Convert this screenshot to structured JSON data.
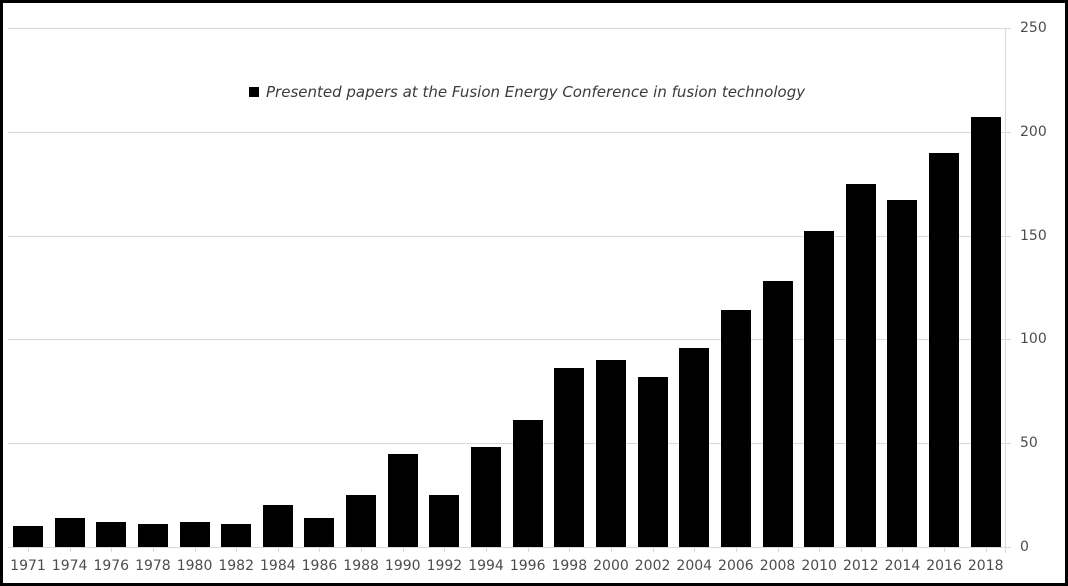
{
  "chart_data": {
    "type": "bar",
    "title": "",
    "legend": "Presented papers at the Fusion Energy Conference in fusion technology",
    "legend_position": "top-center",
    "categories": [
      "1971",
      "1974",
      "1976",
      "1978",
      "1980",
      "1982",
      "1984",
      "1986",
      "1988",
      "1990",
      "1992",
      "1994",
      "1996",
      "1998",
      "2000",
      "2002",
      "2004",
      "2006",
      "2008",
      "2010",
      "2012",
      "2014",
      "2016",
      "2018"
    ],
    "values": [
      10,
      14,
      12,
      11,
      12,
      11,
      20,
      14,
      25,
      45,
      25,
      48,
      61,
      86,
      90,
      82,
      96,
      114,
      128,
      152,
      175,
      167,
      190,
      207
    ],
    "xlabel": "",
    "ylabel": "",
    "ylim": [
      0,
      250
    ],
    "yticks": [
      0,
      50,
      100,
      150,
      200,
      250
    ],
    "grid": true,
    "colors": {
      "bar": "#000000",
      "background": "#ffffff",
      "frame_border": "#000000",
      "gridline": "#d9d9d9",
      "axis_line": "#d9d9d9",
      "tick": "#d9d9d9",
      "tick_label": "#4d4d4d",
      "legend_text": "#3b3b3b",
      "legend_marker": "#000000"
    }
  }
}
